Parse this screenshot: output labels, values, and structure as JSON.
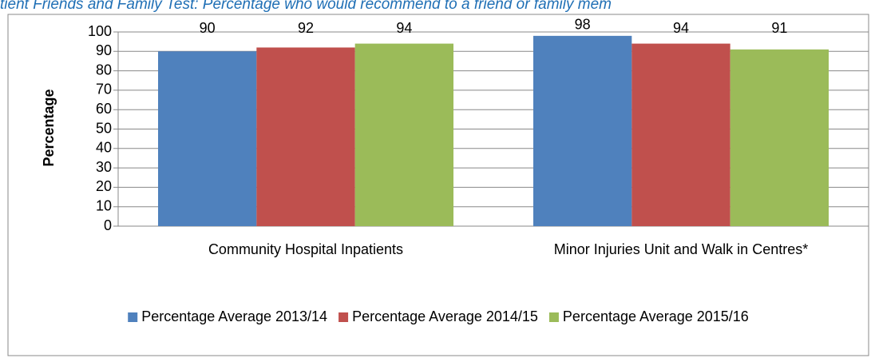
{
  "chart_data": {
    "type": "bar",
    "title": "tient Friends and Family Test: Percentage who would recommend to a friend or family mem",
    "y_label": "Percentage",
    "categories": [
      "Community Hospital Inpatients",
      "Minor Injuries Unit and Walk in Centres*"
    ],
    "series": [
      {
        "name": "Percentage Average 2013/14",
        "color": "#4f81bd",
        "values": [
          90,
          98
        ]
      },
      {
        "name": "Percentage Average 2014/15",
        "color": "#c0504d",
        "values": [
          92,
          94
        ]
      },
      {
        "name": "Percentage Average 2015/16",
        "color": "#9bbb59",
        "values": [
          94,
          91
        ]
      }
    ],
    "ylim": [
      0,
      100
    ],
    "yticks": [
      0,
      10,
      20,
      30,
      40,
      50,
      60,
      70,
      80,
      90,
      100
    ],
    "grid": true,
    "legend": "bottom"
  }
}
